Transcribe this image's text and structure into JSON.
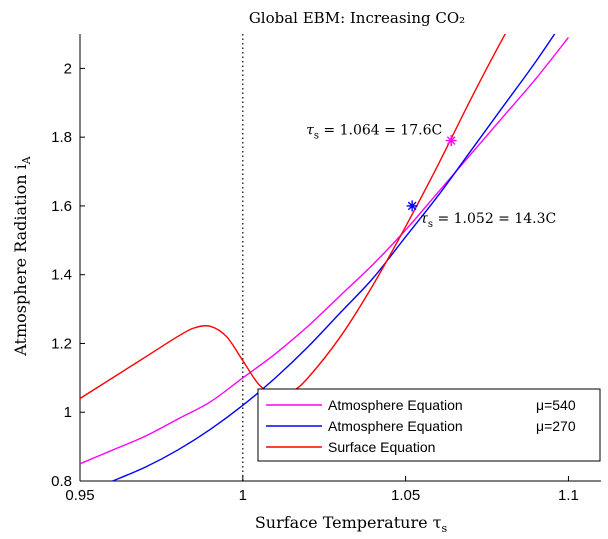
{
  "chart_data": {
    "type": "line",
    "title": "Global EBM: Increasing CO₂",
    "xlabel": "Surface Temperature τ",
    "xlabel_sub": "s",
    "ylabel": "Atmosphere Radiation i",
    "ylabel_sub": "A",
    "xlim": [
      0.95,
      1.11
    ],
    "ylim": [
      0.8,
      2.1
    ],
    "x_ticks": [
      0.95,
      1,
      1.05,
      1.1
    ],
    "x_tick_labels": [
      "0.95",
      "1",
      "1.05",
      "1.1"
    ],
    "y_ticks": [
      0.8,
      1.0,
      1.2,
      1.4,
      1.6,
      1.8,
      2.0
    ],
    "y_tick_labels": [
      "0.8",
      "1",
      "1.2",
      "1.4",
      "1.6",
      "1.8",
      "2"
    ],
    "grid": false,
    "legend_position": "bottom-right",
    "vertical_reference_line": {
      "x": 1.0,
      "style": "dotted"
    },
    "series": [
      {
        "name": "Atmosphere Equation",
        "mu_label": "μ=540",
        "color": "#ff00ff",
        "x": [
          0.95,
          0.96,
          0.97,
          0.98,
          0.99,
          1.0,
          1.01,
          1.02,
          1.03,
          1.04,
          1.05,
          1.06,
          1.07,
          1.08,
          1.09,
          1.1
        ],
        "y": [
          0.85,
          0.89,
          0.93,
          0.98,
          1.03,
          1.1,
          1.17,
          1.25,
          1.34,
          1.43,
          1.53,
          1.64,
          1.75,
          1.86,
          1.97,
          2.09
        ]
      },
      {
        "name": "Atmosphere Equation",
        "mu_label": "μ=270",
        "color": "#0000ff",
        "x": [
          0.96,
          0.97,
          0.98,
          0.99,
          1.0,
          1.01,
          1.02,
          1.03,
          1.04,
          1.05,
          1.06,
          1.07,
          1.08,
          1.09,
          1.1,
          1.105
        ],
        "y": [
          0.8,
          0.84,
          0.89,
          0.95,
          1.02,
          1.1,
          1.19,
          1.29,
          1.39,
          1.51,
          1.63,
          1.76,
          1.89,
          2.02,
          2.16,
          2.23
        ]
      },
      {
        "name": "Surface Equation",
        "color": "#ff0000",
        "x": [
          0.95,
          0.96,
          0.97,
          0.98,
          0.985,
          0.99,
          0.995,
          1.0,
          1.005,
          1.01,
          1.015,
          1.02,
          1.03,
          1.04,
          1.05,
          1.06,
          1.07,
          1.08,
          1.085
        ],
        "y": [
          1.04,
          1.1,
          1.16,
          1.22,
          1.245,
          1.25,
          1.22,
          1.15,
          1.08,
          1.05,
          1.06,
          1.1,
          1.22,
          1.37,
          1.54,
          1.72,
          1.91,
          2.09,
          2.17
        ]
      }
    ],
    "annotations": [
      {
        "label": "τ",
        "sub": "s",
        "text": " = 1.064 = 17.6C",
        "x": 1.064,
        "y": 1.79,
        "color": "#ff00ff",
        "side": "left"
      },
      {
        "label": "τ",
        "sub": "s",
        "text": " = 1.052 = 14.3C",
        "x": 1.052,
        "y": 1.6,
        "color": "#0000ff",
        "side": "right"
      }
    ]
  }
}
